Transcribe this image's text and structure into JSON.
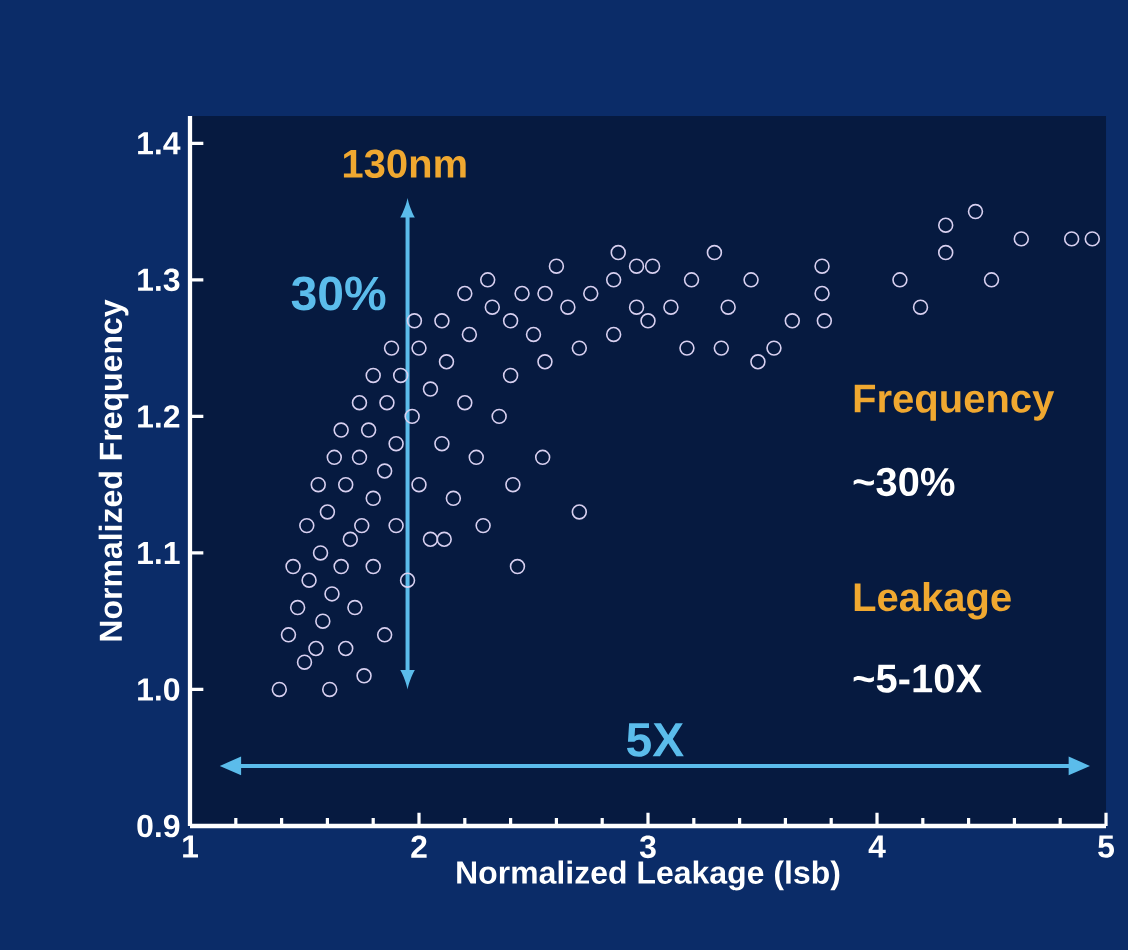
{
  "chart_data": {
    "type": "scatter",
    "xlabel": "Normalized Leakage (lsb)",
    "ylabel": "Normalized Frequency",
    "annotations": [
      "130nm",
      "30%",
      "Frequency",
      "~30%",
      "Leakage",
      "~5-10X",
      "5X"
    ],
    "x": [
      1.39,
      1.61,
      1.43,
      1.5,
      1.55,
      1.47,
      1.58,
      1.52,
      1.62,
      1.45,
      1.57,
      1.66,
      1.51,
      1.7,
      1.6,
      1.75,
      1.56,
      1.68,
      1.8,
      1.63,
      1.74,
      1.85,
      1.66,
      1.78,
      1.9,
      1.74,
      1.86,
      1.97,
      1.8,
      1.92,
      2.05,
      1.88,
      2.0,
      2.12,
      1.98,
      2.1,
      2.22,
      2.2,
      2.32,
      2.4,
      2.3,
      2.45,
      2.55,
      2.5,
      2.65,
      2.75,
      2.6,
      2.85,
      2.95,
      2.7,
      2.85,
      3.0,
      2.4,
      2.55,
      2.2,
      2.35,
      2.1,
      2.25,
      2.0,
      2.15,
      1.9,
      2.05,
      1.8,
      1.95,
      1.72,
      1.85,
      1.68,
      1.76,
      2.43,
      2.7,
      2.54,
      2.41,
      2.28,
      2.11,
      3.29,
      3.76,
      3.76,
      3.48,
      3.32,
      4.1,
      4.19,
      4.3,
      4.43,
      4.3,
      4.5,
      4.63,
      4.85,
      4.94,
      3.77,
      3.63,
      3.45,
      3.19,
      3.02,
      2.87,
      3.55,
      3.17,
      3.1,
      3.35,
      2.95
    ],
    "values": [
      1.0,
      1.0,
      1.04,
      1.02,
      1.03,
      1.06,
      1.05,
      1.08,
      1.07,
      1.09,
      1.1,
      1.09,
      1.12,
      1.11,
      1.13,
      1.12,
      1.15,
      1.15,
      1.14,
      1.17,
      1.17,
      1.16,
      1.19,
      1.19,
      1.18,
      1.21,
      1.21,
      1.2,
      1.23,
      1.23,
      1.22,
      1.25,
      1.25,
      1.24,
      1.27,
      1.27,
      1.26,
      1.29,
      1.28,
      1.27,
      1.3,
      1.29,
      1.29,
      1.26,
      1.28,
      1.29,
      1.31,
      1.3,
      1.28,
      1.25,
      1.26,
      1.27,
      1.23,
      1.24,
      1.21,
      1.2,
      1.18,
      1.17,
      1.15,
      1.14,
      1.12,
      1.11,
      1.09,
      1.08,
      1.06,
      1.04,
      1.03,
      1.01,
      1.09,
      1.13,
      1.17,
      1.15,
      1.12,
      1.11,
      1.32,
      1.31,
      1.29,
      1.24,
      1.25,
      1.3,
      1.28,
      1.34,
      1.35,
      1.32,
      1.3,
      1.33,
      1.33,
      1.33,
      1.27,
      1.27,
      1.3,
      1.3,
      1.31,
      1.32,
      1.25,
      1.25,
      1.28,
      1.28,
      1.31
    ],
    "color": "#d8d0f0",
    "marker": "circle",
    "xlim": [
      1,
      5
    ],
    "ylim": [
      0.9,
      1.42
    ],
    "xticks": [
      1,
      2,
      3,
      4,
      5
    ],
    "yticks": [
      {
        "value": 0.9,
        "label": "0.9"
      },
      {
        "value": 1.0,
        "label": "1.0"
      },
      1.1,
      1.2,
      1.3,
      1.4
    ]
  }
}
